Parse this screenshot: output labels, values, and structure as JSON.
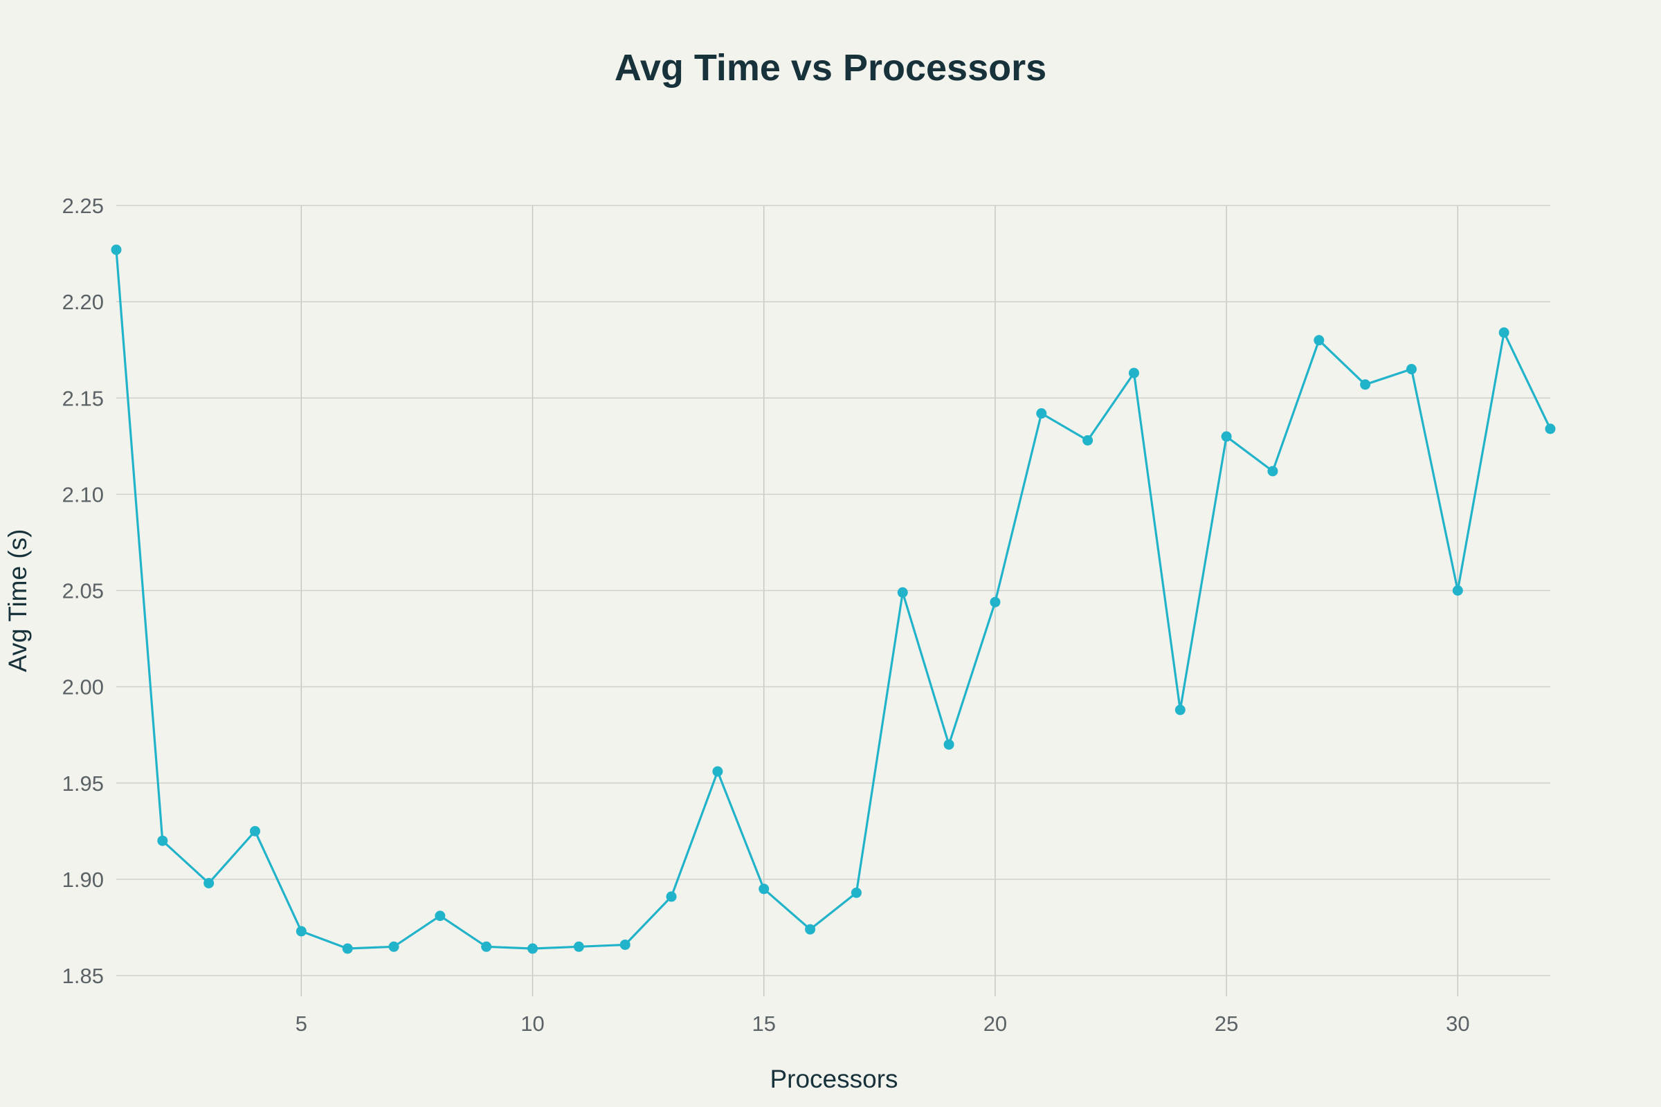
{
  "chart_data": {
    "type": "line",
    "title": "Avg Time vs Processors",
    "xlabel": "Processors",
    "ylabel": "Avg Time (s)",
    "xlim": [
      1,
      32
    ],
    "ylim": [
      1.84,
      2.25
    ],
    "xticks": [
      5,
      10,
      15,
      20,
      25,
      30
    ],
    "yticks": [
      1.85,
      1.9,
      1.95,
      2.0,
      2.05,
      2.1,
      2.15,
      2.2,
      2.25
    ],
    "ytick_labels": [
      "1.85",
      "1.90",
      "1.95",
      "2.00",
      "2.05",
      "2.10",
      "2.15",
      "2.20",
      "2.25"
    ],
    "grid": true,
    "legend": "none",
    "colors": {
      "series": "#21b3c9",
      "background": "#f3f3ee"
    },
    "series": [
      {
        "x": [
          1,
          2,
          3,
          4,
          5,
          6,
          7,
          8,
          9,
          10,
          11,
          12,
          13,
          14,
          15,
          16,
          17,
          18,
          19,
          20,
          21,
          22,
          23,
          24,
          25,
          26,
          27,
          28,
          29,
          30,
          31,
          32
        ],
        "values": [
          2.227,
          1.92,
          1.898,
          1.925,
          1.873,
          1.864,
          1.865,
          1.881,
          1.865,
          1.864,
          1.865,
          1.866,
          1.891,
          1.956,
          1.895,
          1.874,
          1.893,
          2.049,
          1.97,
          2.044,
          2.142,
          2.128,
          2.163,
          1.988,
          2.13,
          2.112,
          2.18,
          2.157,
          2.165,
          2.05,
          2.184,
          2.134
        ]
      }
    ]
  }
}
